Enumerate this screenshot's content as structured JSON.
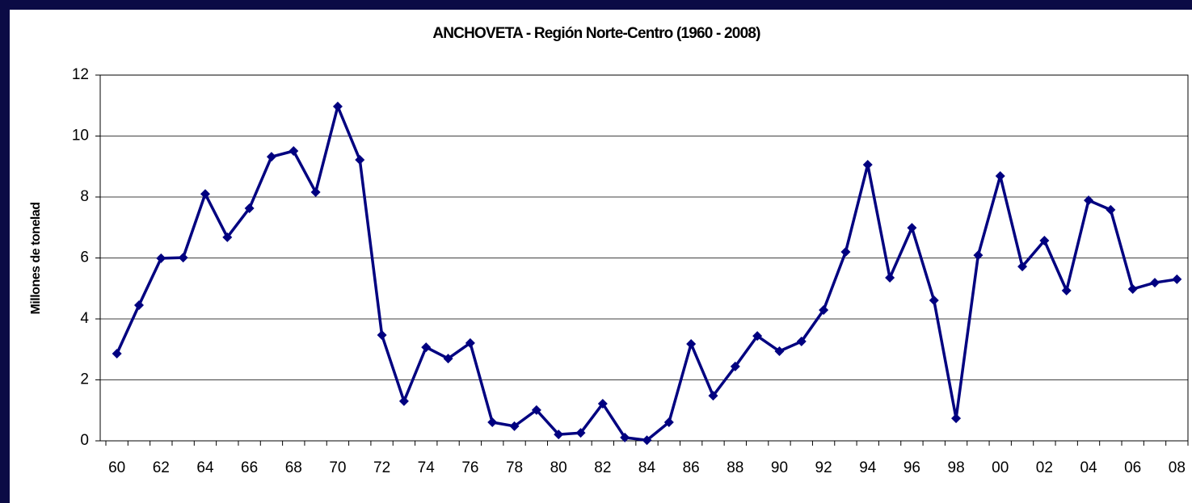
{
  "chart_data": {
    "type": "line",
    "title": "ANCHOVETA - Región Norte-Centro (1960 - 2008)",
    "y_label": "Millones de tonelad",
    "categories": [
      "60",
      null,
      "62",
      null,
      "64",
      null,
      "66",
      null,
      "68",
      null,
      "70",
      null,
      "72",
      null,
      "74",
      null,
      "76",
      null,
      "78",
      null,
      "80",
      null,
      "82",
      null,
      "84",
      null,
      "86",
      null,
      "88",
      null,
      "90",
      null,
      "92",
      null,
      "94",
      null,
      "96",
      null,
      "98",
      null,
      "00",
      null,
      "02",
      null,
      "04",
      null,
      "06",
      null,
      "08"
    ],
    "series": [
      {
        "name": "Anchoveta",
        "color": "#000080",
        "values": [
          2.86,
          4.45,
          5.99,
          6.01,
          8.1,
          6.68,
          7.63,
          9.32,
          9.51,
          8.16,
          10.97,
          9.22,
          3.47,
          1.3,
          3.07,
          2.7,
          3.21,
          0.61,
          0.48,
          1.01,
          0.21,
          0.26,
          1.22,
          0.11,
          0.02,
          0.61,
          3.18,
          1.48,
          2.44,
          3.44,
          2.94,
          3.26,
          4.29,
          6.2,
          9.06,
          5.35,
          6.99,
          4.61,
          0.74,
          6.09,
          8.69,
          5.72,
          6.57,
          4.93,
          7.89,
          7.58,
          4.98,
          5.19,
          5.3
        ]
      }
    ],
    "ylim": [
      0,
      12
    ],
    "yticks": [
      0,
      2,
      4,
      6,
      8,
      10,
      12
    ],
    "grid": true
  }
}
